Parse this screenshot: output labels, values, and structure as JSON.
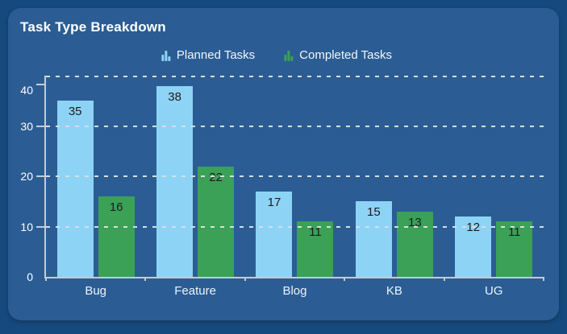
{
  "card": {
    "title": "Task Type Breakdown"
  },
  "legend": [
    {
      "label": "Planned Tasks",
      "color": "#8dd3f5"
    },
    {
      "label": "Completed Tasks",
      "color": "#3aa157"
    }
  ],
  "chart_data": {
    "type": "bar",
    "title": "Task Type Breakdown",
    "categories": [
      "Bug",
      "Feature",
      "Blog",
      "KB",
      "UG"
    ],
    "series": [
      {
        "name": "Planned Tasks",
        "color": "#8dd3f5",
        "values": [
          35,
          38,
          17,
          15,
          12
        ]
      },
      {
        "name": "Completed Tasks",
        "color": "#3aa157",
        "values": [
          16,
          22,
          11,
          13,
          11
        ]
      }
    ],
    "xlabel": "",
    "ylabel": "",
    "ylim": [
      0,
      40
    ],
    "yticks": [
      0,
      10,
      20,
      30,
      40
    ],
    "grid": "horizontal-dashed",
    "legend_position": "top",
    "bar_value_labels": "inside-top"
  },
  "colors": {
    "background": "#164a7e",
    "card": "#2b5d94",
    "axis": "#c2ccd6",
    "gridline": "#d9dde2",
    "text": "#ffffff",
    "bar_label": "#1c1c1c"
  }
}
